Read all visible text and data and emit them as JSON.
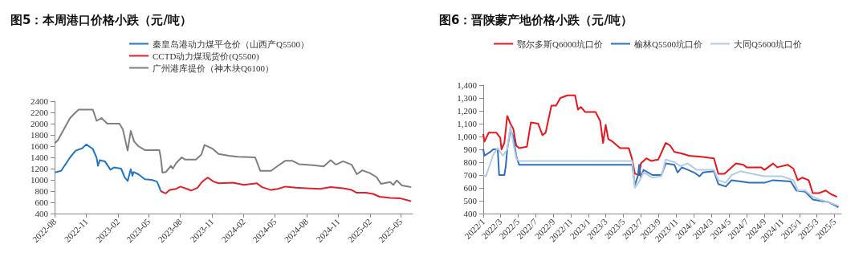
{
  "chart_data": [
    {
      "type": "line",
      "title": "图5：本周港口价格小跌（元/吨）",
      "legend": "top",
      "grid": false,
      "xlim": [
        "2022-08-01",
        "2025-06-05"
      ],
      "xticks": [
        "2022-08",
        "2022-11",
        "2023-02",
        "2023-05",
        "2023-08",
        "2023-11",
        "2024-02",
        "2024-05",
        "2024-08",
        "2024-11",
        "2025-02",
        "2025-05"
      ],
      "ylim": [
        400,
        2400
      ],
      "yticks": [
        400,
        600,
        800,
        1000,
        1200,
        1400,
        1600,
        1800,
        2000,
        2200,
        2400
      ],
      "series": [
        {
          "name": "秦皇岛港动力煤平仓价（山西产Q5500）",
          "color": "#1f77c4",
          "x": [
            "2022-08-01",
            "2022-08-20",
            "2022-09-15",
            "2022-10-01",
            "2022-10-20",
            "2022-11-01",
            "2022-11-20",
            "2022-12-01",
            "2022-12-05",
            "2022-12-10",
            "2022-12-25",
            "2023-01-10",
            "2023-01-20",
            "2023-02-10",
            "2023-02-20",
            "2023-03-01",
            "2023-03-10",
            "2023-03-15",
            "2023-03-18",
            "2023-04-01",
            "2023-04-20",
            "2023-05-10",
            "2023-05-25",
            "2023-06-01",
            "2023-06-05"
          ],
          "values": [
            1130,
            1160,
            1400,
            1520,
            1560,
            1630,
            1550,
            1390,
            1250,
            1350,
            1330,
            1180,
            1220,
            1200,
            1050,
            980,
            1190,
            1070,
            1140,
            1100,
            1010,
            1000,
            970,
            870,
            800
          ]
        },
        {
          "name": "CCTD动力煤现货价(Q5500)",
          "color": "#e0202c",
          "x": [
            "2023-06-05",
            "2023-06-15",
            "2023-06-20",
            "2023-07-01",
            "2023-07-20",
            "2023-08-01",
            "2023-08-20",
            "2023-09-01",
            "2023-09-20",
            "2023-10-01",
            "2023-10-10",
            "2023-10-20",
            "2023-11-05",
            "2023-11-20",
            "2024-01-01",
            "2024-02-01",
            "2024-03-10",
            "2024-03-25",
            "2024-04-20",
            "2024-05-10",
            "2024-06-01",
            "2024-07-01",
            "2024-08-01",
            "2024-09-10",
            "2024-10-10",
            "2024-11-15",
            "2024-12-10",
            "2024-12-25",
            "2025-01-20",
            "2025-02-10",
            "2025-03-01",
            "2025-04-01",
            "2025-05-01",
            "2025-05-20",
            "2025-06-01"
          ],
          "values": [
            800,
            770,
            760,
            820,
            840,
            880,
            840,
            810,
            860,
            950,
            1000,
            1040,
            970,
            940,
            950,
            910,
            940,
            870,
            820,
            840,
            880,
            860,
            850,
            840,
            870,
            850,
            820,
            770,
            770,
            750,
            700,
            680,
            670,
            640,
            620
          ]
        },
        {
          "name": "广州港库提价（神木块Q6100）",
          "color": "#7f7f7f",
          "x": [
            "2022-08-01",
            "2022-08-10",
            "2022-09-15",
            "2022-10-01",
            "2022-10-10",
            "2022-11-20",
            "2022-12-01",
            "2022-12-15",
            "2023-01-01",
            "2023-02-05",
            "2023-02-15",
            "2023-03-01",
            "2023-03-10",
            "2023-03-20",
            "2023-04-01",
            "2023-04-20",
            "2023-06-01",
            "2023-06-05",
            "2023-06-10",
            "2023-06-20",
            "2023-07-05",
            "2023-07-10",
            "2023-07-20",
            "2023-08-05",
            "2023-08-15",
            "2023-09-15",
            "2023-10-01",
            "2023-10-10",
            "2023-11-01",
            "2023-11-20",
            "2023-12-20",
            "2024-01-15",
            "2024-03-05",
            "2024-03-20",
            "2024-04-20",
            "2024-05-10",
            "2024-06-01",
            "2024-06-20",
            "2024-07-10",
            "2024-08-20",
            "2024-09-20",
            "2024-10-10",
            "2024-10-25",
            "2024-11-15",
            "2024-12-10",
            "2024-12-25",
            "2025-01-10",
            "2025-02-01",
            "2025-02-20",
            "2025-03-05",
            "2025-04-01",
            "2025-04-10",
            "2025-04-20",
            "2025-05-05",
            "2025-05-25",
            "2025-06-01"
          ],
          "values": [
            1650,
            1700,
            2100,
            2200,
            2250,
            2250,
            2050,
            2100,
            2000,
            2000,
            1900,
            1520,
            1870,
            1680,
            1600,
            1530,
            1530,
            1400,
            1130,
            1140,
            1250,
            1200,
            1300,
            1400,
            1360,
            1360,
            1450,
            1620,
            1560,
            1460,
            1430,
            1410,
            1400,
            1160,
            1160,
            1250,
            1340,
            1340,
            1280,
            1260,
            1240,
            1350,
            1270,
            1330,
            1270,
            1100,
            1170,
            1120,
            1050,
            930,
            960,
            910,
            990,
            900,
            880,
            870
          ]
        }
      ]
    },
    {
      "type": "line",
      "title": "图6：晋陕蒙产地价格小跌（元/吨）",
      "legend": "top",
      "grid": false,
      "xlim": [
        "2022-01-01",
        "2025-05-25"
      ],
      "xticks": [
        {
          "value": "2022-01",
          "label": "2022/1"
        },
        {
          "value": "2022-03",
          "label": "2022/3"
        },
        {
          "value": "2022-05",
          "label": "2022/5"
        },
        {
          "value": "2022-07",
          "label": "2022/7"
        },
        {
          "value": "2022-09",
          "label": "2022/9"
        },
        {
          "value": "2022-11",
          "label": "2022/11"
        },
        {
          "value": "2023-01",
          "label": "2023/1"
        },
        {
          "value": "2023-03",
          "label": "2023/3"
        },
        {
          "value": "2023-05",
          "label": "2023/5"
        },
        {
          "value": "2023-07",
          "label": "2023/7"
        },
        {
          "value": "2023-09",
          "label": "2023/9"
        },
        {
          "value": "2023-11",
          "label": "2023/11"
        },
        {
          "value": "2024-01",
          "label": "2024/1"
        },
        {
          "value": "2024-03",
          "label": "2024/3"
        },
        {
          "value": "2024-05",
          "label": "2024/5"
        },
        {
          "value": "2024-07",
          "label": "2024/7"
        },
        {
          "value": "2024-09",
          "label": "2024/9"
        },
        {
          "value": "2024-11",
          "label": "2024/11"
        },
        {
          "value": "2025-01",
          "label": "2025/1"
        },
        {
          "value": "2025-03",
          "label": "2025/3"
        },
        {
          "value": "2025-05",
          "label": "2025/5"
        }
      ],
      "ylim": [
        400,
        1400
      ],
      "yticks": [
        400,
        500,
        600,
        700,
        800,
        900,
        {
          "value": 1000,
          "label": "1,000"
        },
        {
          "value": 1100,
          "label": "1,100"
        },
        {
          "value": 1200,
          "label": "1,200"
        },
        {
          "value": 1300,
          "label": "1,300"
        },
        {
          "value": 1400,
          "label": "1,400"
        }
      ],
      "series": [
        {
          "name": "鄂尔多斯Q6000坑口价",
          "color": "#e8151b",
          "x": [
            "2022-01-01",
            "2022-01-05",
            "2022-01-20",
            "2022-02-15",
            "2022-03-01",
            "2022-03-05",
            "2022-03-15",
            "2022-03-25",
            "2022-04-05",
            "2022-04-15",
            "2022-04-25",
            "2022-05-05",
            "2022-06-01",
            "2022-06-15",
            "2022-07-10",
            "2022-07-25",
            "2022-08-05",
            "2022-08-25",
            "2022-09-10",
            "2022-09-25",
            "2022-10-20",
            "2022-11-15",
            "2022-11-25",
            "2022-12-05",
            "2022-12-20",
            "2023-01-25",
            "2023-02-10",
            "2023-02-20",
            "2023-03-01",
            "2023-03-10",
            "2023-03-25",
            "2023-04-20",
            "2023-05-20",
            "2023-06-01",
            "2023-06-10",
            "2023-06-25",
            "2023-07-01",
            "2023-07-20",
            "2023-08-05",
            "2023-08-30",
            "2023-09-25",
            "2023-10-10",
            "2023-10-25",
            "2023-11-15",
            "2023-12-15",
            "2024-02-01",
            "2024-03-10",
            "2024-03-25",
            "2024-04-15",
            "2024-05-10",
            "2024-05-25",
            "2024-06-20",
            "2024-07-01",
            "2024-08-20",
            "2024-09-01",
            "2024-10-01",
            "2024-10-15",
            "2024-11-20",
            "2024-12-10",
            "2024-12-25",
            "2025-01-10",
            "2025-02-01",
            "2025-02-15",
            "2025-03-10",
            "2025-04-01",
            "2025-04-20",
            "2025-05-10"
          ],
          "values": [
            1020,
            960,
            1030,
            1030,
            990,
            900,
            950,
            1160,
            1100,
            1060,
            930,
            910,
            920,
            1110,
            1100,
            1010,
            1030,
            1240,
            1240,
            1300,
            1320,
            1320,
            1210,
            1230,
            1190,
            1190,
            1120,
            950,
            1090,
            980,
            960,
            910,
            910,
            820,
            710,
            700,
            790,
            830,
            810,
            820,
            950,
            930,
            880,
            870,
            850,
            840,
            830,
            710,
            710,
            760,
            790,
            780,
            760,
            760,
            740,
            790,
            760,
            780,
            750,
            660,
            680,
            660,
            560,
            560,
            580,
            550,
            530
          ]
        },
        {
          "name": "榆林Q5500坑口价",
          "color": "#2e6fbf",
          "x": [
            "2022-01-01",
            "2022-01-05",
            "2022-01-25",
            "2022-02-05",
            "2022-02-20",
            "2022-02-25",
            "2022-03-15",
            "2022-03-20",
            "2022-03-25",
            "2022-04-05",
            "2022-04-15",
            "2022-04-25",
            "2022-05-05",
            "2023-06-01",
            "2023-06-10",
            "2023-06-20",
            "2023-06-25",
            "2023-07-01",
            "2023-07-10",
            "2023-08-10",
            "2023-09-10",
            "2023-09-25",
            "2023-10-25",
            "2023-11-05",
            "2023-11-20",
            "2024-01-01",
            "2024-01-20",
            "2024-02-01",
            "2024-03-10",
            "2024-03-25",
            "2024-04-20",
            "2024-05-10",
            "2024-06-10",
            "2024-07-10",
            "2024-09-01",
            "2024-10-01",
            "2024-12-01",
            "2024-12-20",
            "2025-01-20",
            "2025-02-15",
            "2025-03-10",
            "2025-04-10",
            "2025-05-15"
          ],
          "values": [
            900,
            850,
            880,
            900,
            900,
            700,
            700,
            770,
            900,
            1050,
            1000,
            850,
            780,
            780,
            620,
            690,
            780,
            680,
            740,
            700,
            700,
            790,
            780,
            720,
            760,
            720,
            690,
            720,
            730,
            630,
            610,
            660,
            650,
            640,
            640,
            660,
            650,
            580,
            570,
            510,
            500,
            490,
            450
          ]
        },
        {
          "name": "大同Q5600坑口价",
          "color": "#b4cbe6",
          "x": [
            "2022-01-01",
            "2022-01-10",
            "2022-02-05",
            "2022-02-20",
            "2022-03-10",
            "2022-03-25",
            "2022-04-05",
            "2022-04-15",
            "2022-04-25",
            "2022-05-05",
            "2023-06-01",
            "2023-06-10",
            "2023-06-25",
            "2023-07-10",
            "2023-08-10",
            "2023-09-10",
            "2023-09-25",
            "2023-10-25",
            "2023-11-15",
            "2023-12-10",
            "2024-01-10",
            "2024-03-10",
            "2024-03-25",
            "2024-04-20",
            "2024-05-10",
            "2024-06-10",
            "2024-07-20",
            "2024-09-01",
            "2024-11-01",
            "2024-12-10",
            "2024-12-25",
            "2025-01-20",
            "2025-02-15",
            "2025-03-10",
            "2025-04-10",
            "2025-05-15"
          ],
          "values": [
            700,
            690,
            860,
            910,
            850,
            900,
            1080,
            950,
            830,
            810,
            810,
            600,
            650,
            720,
            680,
            690,
            820,
            800,
            770,
            790,
            740,
            740,
            660,
            640,
            700,
            730,
            710,
            690,
            690,
            660,
            580,
            580,
            530,
            510,
            490,
            460
          ]
        }
      ]
    }
  ]
}
